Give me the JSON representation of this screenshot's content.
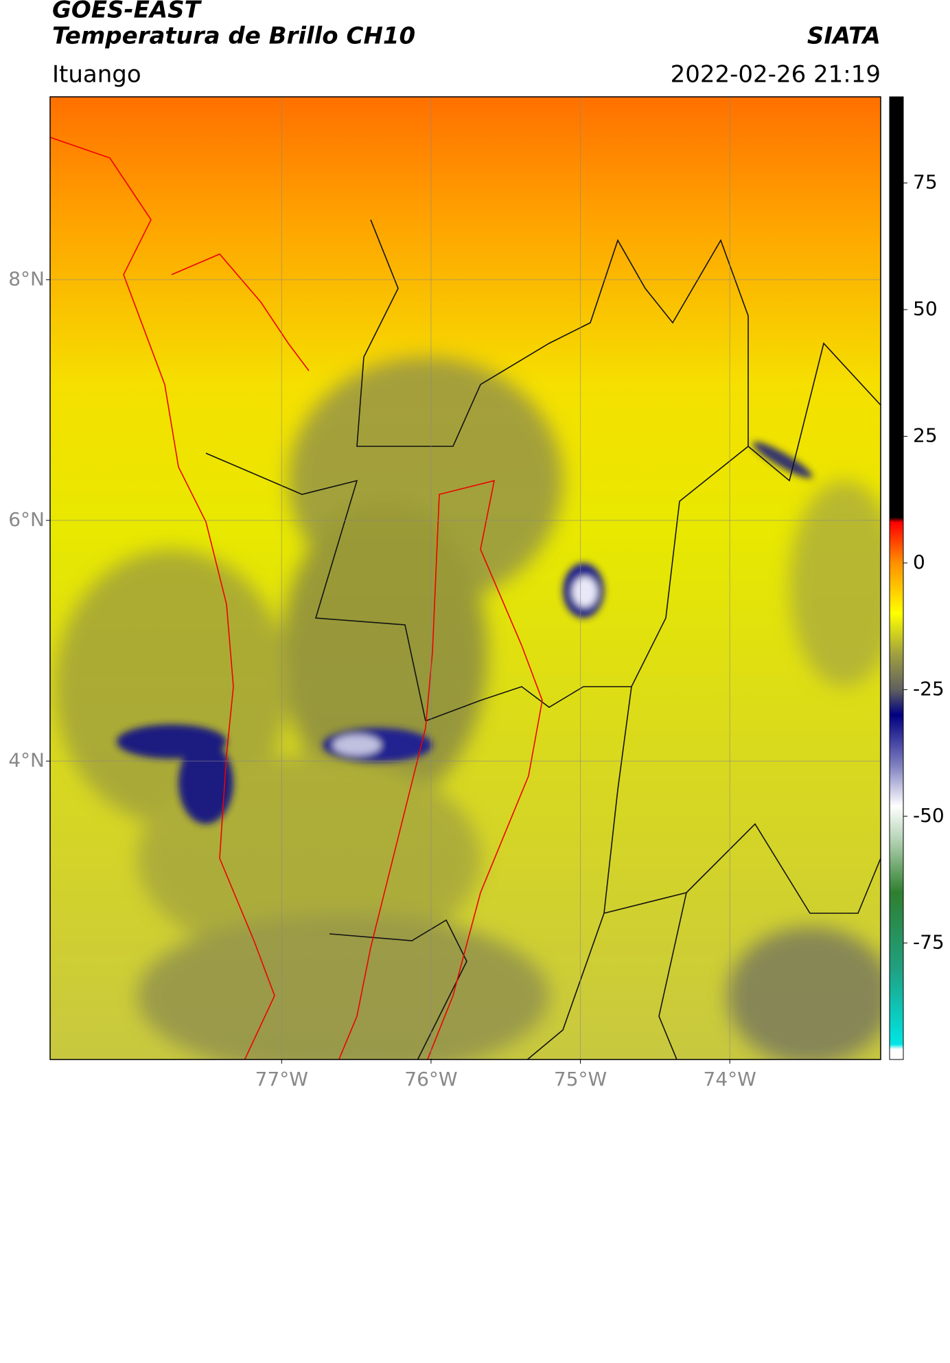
{
  "chart_data": {
    "type": "map",
    "title": "GOES-EAST",
    "subtitle": "Temperatura de Brillo CH10",
    "source": "SIATA",
    "location": "Ituango",
    "datetime": "2022-02-26 21:19",
    "xlim": [
      -78.55,
      -72.99
    ],
    "ylim": [
      1.52,
      9.52
    ],
    "xticks": [
      {
        "value": -77,
        "label": "77°W"
      },
      {
        "value": -76,
        "label": "76°W"
      },
      {
        "value": -75,
        "label": "75°W"
      },
      {
        "value": -74,
        "label": "74°W"
      }
    ],
    "yticks": [
      {
        "value": 8,
        "label": "8°N"
      },
      {
        "value": 6,
        "label": "6°N"
      },
      {
        "value": 4,
        "label": "4°N"
      }
    ],
    "grid": true,
    "colorbar": {
      "lim": [
        -98,
        92
      ],
      "ticks": [
        75,
        50,
        25,
        0,
        -25,
        -50,
        -75
      ],
      "stops": [
        {
          "value": -98,
          "color": "#ffffff"
        },
        {
          "value": -96,
          "color": "#ffffff"
        },
        {
          "value": -95,
          "color": "#00e5e5"
        },
        {
          "value": -80,
          "color": "#20a080"
        },
        {
          "value": -65,
          "color": "#2f7f2f"
        },
        {
          "value": -55,
          "color": "#b0d0b0"
        },
        {
          "value": -48,
          "color": "#ffffff"
        },
        {
          "value": -40,
          "color": "#8080c0"
        },
        {
          "value": -30,
          "color": "#000080"
        },
        {
          "value": -25,
          "color": "#606060"
        },
        {
          "value": -18,
          "color": "#a0a040"
        },
        {
          "value": -10,
          "color": "#ffff00"
        },
        {
          "value": 0,
          "color": "#ff9000"
        },
        {
          "value": 8,
          "color": "#ff0000"
        },
        {
          "value": 9,
          "color": "#000000"
        },
        {
          "value": 92,
          "color": "#000000"
        }
      ]
    }
  }
}
